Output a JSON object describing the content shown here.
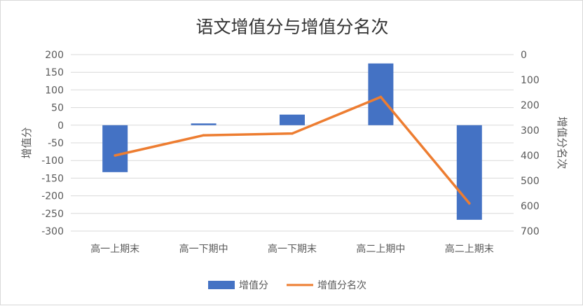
{
  "chart_data": {
    "type": "bar",
    "title": "语文增值分与增值分名次",
    "categories": [
      "高一上期末",
      "高一下期中",
      "高一下期末",
      "高二上期中",
      "高二上期末"
    ],
    "series": [
      {
        "name": "增值分",
        "type": "bar",
        "axis": "left",
        "color": "#4472C4",
        "values": [
          -133,
          5,
          30,
          175,
          -268
        ]
      },
      {
        "name": "增值分名次",
        "type": "line",
        "axis": "right",
        "color": "#ED7D31",
        "values": [
          400,
          320,
          313,
          168,
          590
        ]
      }
    ],
    "y_left": {
      "label": "增值分",
      "min": -300,
      "max": 200,
      "ticks": [
        200,
        150,
        100,
        50,
        0,
        -50,
        -100,
        -150,
        -200,
        -250,
        -300
      ]
    },
    "y_right": {
      "label": "增值分名次",
      "min": 0,
      "max": 700,
      "reversed": true,
      "ticks": [
        0,
        100,
        200,
        300,
        400,
        500,
        600,
        700
      ]
    },
    "grid": true,
    "legend": "bottom"
  }
}
